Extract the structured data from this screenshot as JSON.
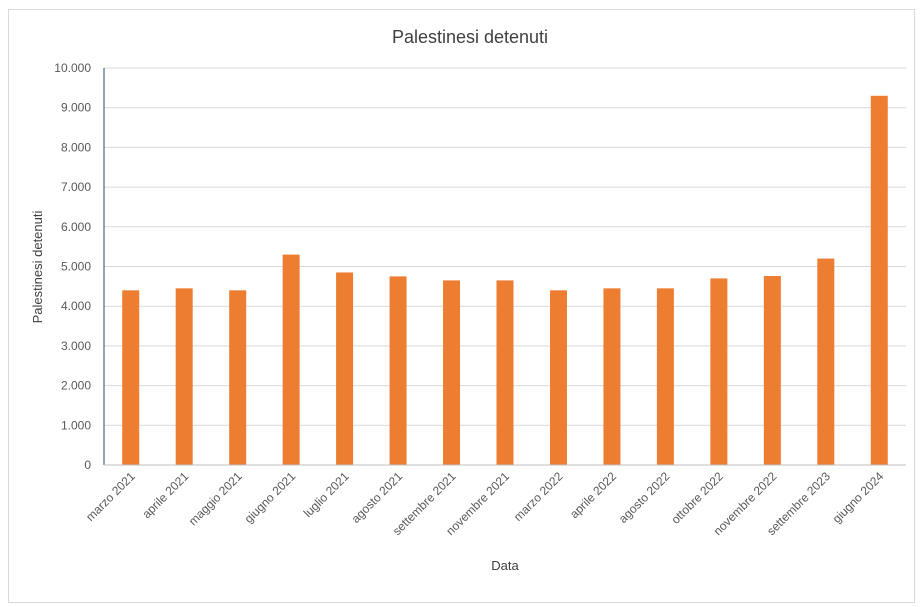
{
  "chart_data": {
    "type": "bar",
    "title": "Palestinesi detenuti",
    "xlabel": "Data",
    "ylabel": "Palestinesi detenuti",
    "ylim": [
      0,
      10000
    ],
    "yticks": [
      "0",
      "1.000",
      "2.000",
      "3.000",
      "4.000",
      "5.000",
      "6.000",
      "7.000",
      "8.000",
      "9.000",
      "10.000"
    ],
    "ytick_values": [
      0,
      1000,
      2000,
      3000,
      4000,
      5000,
      6000,
      7000,
      8000,
      9000,
      10000
    ],
    "grid": true,
    "bar_color": "#ED7D31",
    "categories": [
      "marzo 2021",
      "aprile 2021",
      "maggio 2021",
      "giugno 2021",
      "luglio 2021",
      "agosto 2021",
      "settembre 2021",
      "novembre 2021",
      "marzo 2022",
      "aprile 2022",
      "agosto 2022",
      "ottobre 2022",
      "novembre 2022",
      "settembre 2023",
      "giugno 2024"
    ],
    "values": [
      4400,
      4450,
      4400,
      5300,
      4850,
      4750,
      4650,
      4650,
      4400,
      4450,
      4450,
      4700,
      4760,
      5200,
      9300
    ]
  }
}
